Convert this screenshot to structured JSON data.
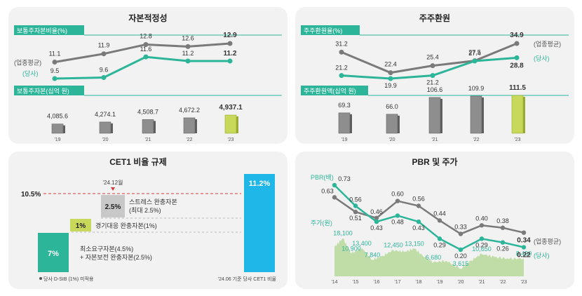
{
  "chart_data": [
    {
      "type": "line+bar",
      "title": "자본적정성",
      "x": [
        "'19",
        "'20",
        "'21",
        "'22",
        "'23"
      ],
      "line_label": "보통주자본비율(%)",
      "series": [
        {
          "name": "(업종평균)",
          "values": [
            11.1,
            11.9,
            12.8,
            12.6,
            12.9
          ]
        },
        {
          "name": "(당사)",
          "values": [
            9.5,
            9.6,
            11.6,
            11.2,
            11.2
          ]
        }
      ],
      "bar_label": "보통주자본(십억 원)",
      "bars": [
        4085.6,
        4274.1,
        4508.7,
        4672.2,
        4937.1
      ],
      "bar_labels": [
        "4,085.6",
        "4,274.1",
        "4,508.7",
        "4,672.2",
        "4,937.1"
      ]
    },
    {
      "type": "line+bar",
      "title": "주주환원",
      "x": [
        "'19",
        "'20",
        "'21",
        "'22",
        "'23"
      ],
      "line_label": "주주환원율(%)",
      "series": [
        {
          "name": "(업종평균)",
          "values": [
            31.2,
            22.4,
            25.4,
            27.5,
            34.9
          ]
        },
        {
          "name": "(당사)",
          "values": [
            21.2,
            19.9,
            21.2,
            27.4,
            28.8
          ]
        }
      ],
      "bar_label": "주주환원액(십억 원)",
      "bars": [
        69.3,
        66.0,
        106.6,
        109.9,
        111.5
      ],
      "bar_labels": [
        "69.3",
        "66.0",
        "106.6",
        "109.9",
        "111.5"
      ]
    },
    {
      "type": "stacked-bar",
      "title": "CET1 비율 규제",
      "threshold_label": "10.5%",
      "threshold": 10.5,
      "date_label": "'24.12월",
      "blocks": [
        {
          "name": "최소요구자본(4.5%)",
          "name2": "+ 자본보전 완충자본(2.5%)",
          "value": 7,
          "label": "7%"
        },
        {
          "name": "경기대응 완충자본(1%)",
          "value": 1,
          "label": "1%"
        },
        {
          "name": "스트레스 완충자본",
          "name2": "(최대 2.5%)",
          "value": 2.5,
          "label": "2.5%"
        }
      ],
      "current": {
        "value": 11.2,
        "label": "11.2%",
        "caption": "'24.06 기준 당사 CET1 비율"
      },
      "footnote": "당사 D-SIB (1%) 미적용"
    },
    {
      "type": "line+area",
      "title": "PBR 및 주가",
      "pbr_label": "PBR(배)",
      "price_label": "주가(원)",
      "x": [
        "'14",
        "'15",
        "'16",
        "'17",
        "'18",
        "'19",
        "'20",
        "'21",
        "'22",
        "'23"
      ],
      "series": [
        {
          "name": "(업종평균)",
          "values": [
            0.63,
            0.51,
            0.46,
            0.6,
            0.56,
            0.44,
            0.33,
            0.4,
            0.38,
            0.34
          ]
        },
        {
          "name": "(당사)",
          "values": [
            0.73,
            0.56,
            0.43,
            0.48,
            0.43,
            0.29,
            0.2,
            0.29,
            0.26,
            0.22
          ]
        }
      ],
      "price_labels": [
        {
          "x": 0.4,
          "value": 18100,
          "text": "18,100"
        },
        {
          "x": 1.3,
          "value": 13400,
          "text": "13,400"
        },
        {
          "x": 0.8,
          "value": 10900,
          "text": "10,900"
        },
        {
          "x": 1.8,
          "value": 7840,
          "text": "7,840"
        },
        {
          "x": 2.8,
          "value": 12450,
          "text": "12,450"
        },
        {
          "x": 3.8,
          "value": 13150,
          "text": "13,150"
        },
        {
          "x": 4.7,
          "value": 6680,
          "text": "6,680"
        },
        {
          "x": 6.0,
          "value": 3615,
          "text": "3,615"
        },
        {
          "x": 7.0,
          "value": 10650,
          "text": "10,650"
        },
        {
          "x": 9.0,
          "value": 8490,
          "text": "8,490"
        }
      ]
    }
  ],
  "colors": {
    "industry": "#7a7a7a",
    "company": "#2db59a",
    "bar_gray": "#8e8e8e",
    "bar_highlight": "#c8d85a",
    "label_bg": "#2db59a",
    "cet1_blue": "#1fb6e8",
    "threshold": "#d93a3a",
    "area": "#b9d99a"
  }
}
